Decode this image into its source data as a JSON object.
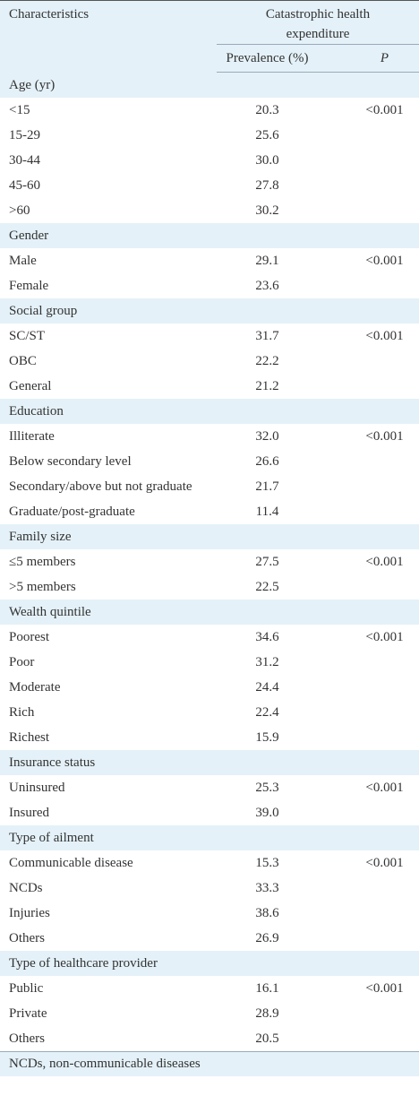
{
  "header": {
    "characteristics": "Characteristics",
    "group_title": "Catastrophic health expenditure",
    "prevalence": "Prevalence (%)",
    "p": "P"
  },
  "groups": [
    {
      "label": "Age (yr)",
      "rows": [
        {
          "label": "<15",
          "prevalence": "20.3",
          "p": "<0.001"
        },
        {
          "label": "15-29",
          "prevalence": "25.6"
        },
        {
          "label": "30-44",
          "prevalence": "30.0"
        },
        {
          "label": "45-60",
          "prevalence": "27.8"
        },
        {
          "label": ">60",
          "prevalence": "30.2"
        }
      ]
    },
    {
      "label": "Gender",
      "rows": [
        {
          "label": "Male",
          "prevalence": "29.1",
          "p": "<0.001"
        },
        {
          "label": "Female",
          "prevalence": "23.6"
        }
      ]
    },
    {
      "label": "Social group",
      "rows": [
        {
          "label": "SC/ST",
          "prevalence": "31.7",
          "p": "<0.001"
        },
        {
          "label": "OBC",
          "prevalence": "22.2"
        },
        {
          "label": "General",
          "prevalence": "21.2"
        }
      ]
    },
    {
      "label": "Education",
      "rows": [
        {
          "label": "Illiterate",
          "prevalence": "32.0",
          "p": "<0.001"
        },
        {
          "label": "Below secondary level",
          "prevalence": "26.6"
        },
        {
          "label": "Secondary/above but not graduate",
          "prevalence": "21.7"
        },
        {
          "label": "Graduate/post-graduate",
          "prevalence": "11.4"
        }
      ]
    },
    {
      "label": "Family size",
      "rows": [
        {
          "label": "≤5 members",
          "prevalence": "27.5",
          "p": "<0.001"
        },
        {
          "label": ">5 members",
          "prevalence": "22.5"
        }
      ]
    },
    {
      "label": "Wealth quintile",
      "rows": [
        {
          "label": "Poorest",
          "prevalence": "34.6",
          "p": "<0.001"
        },
        {
          "label": "Poor",
          "prevalence": "31.2"
        },
        {
          "label": "Moderate",
          "prevalence": "24.4"
        },
        {
          "label": "Rich",
          "prevalence": "22.4"
        },
        {
          "label": "Richest",
          "prevalence": "15.9"
        }
      ]
    },
    {
      "label": "Insurance status",
      "rows": [
        {
          "label": "Uninsured",
          "prevalence": "25.3",
          "p": "<0.001"
        },
        {
          "label": "Insured",
          "prevalence": "39.0"
        }
      ]
    },
    {
      "label": "Type of ailment",
      "rows": [
        {
          "label": "Communicable disease",
          "prevalence": "15.3",
          "p": "<0.001"
        },
        {
          "label": "NCDs",
          "prevalence": "33.3"
        },
        {
          "label": "Injuries",
          "prevalence": "38.6"
        },
        {
          "label": "Others",
          "prevalence": "26.9"
        }
      ]
    },
    {
      "label": "Type of healthcare provider",
      "rows": [
        {
          "label": "Public",
          "prevalence": "16.1",
          "p": "<0.001"
        },
        {
          "label": "Private",
          "prevalence": "28.9"
        },
        {
          "label": "Others",
          "prevalence": "20.5"
        }
      ]
    }
  ],
  "footnote": "NCDs, non-communicable diseases"
}
